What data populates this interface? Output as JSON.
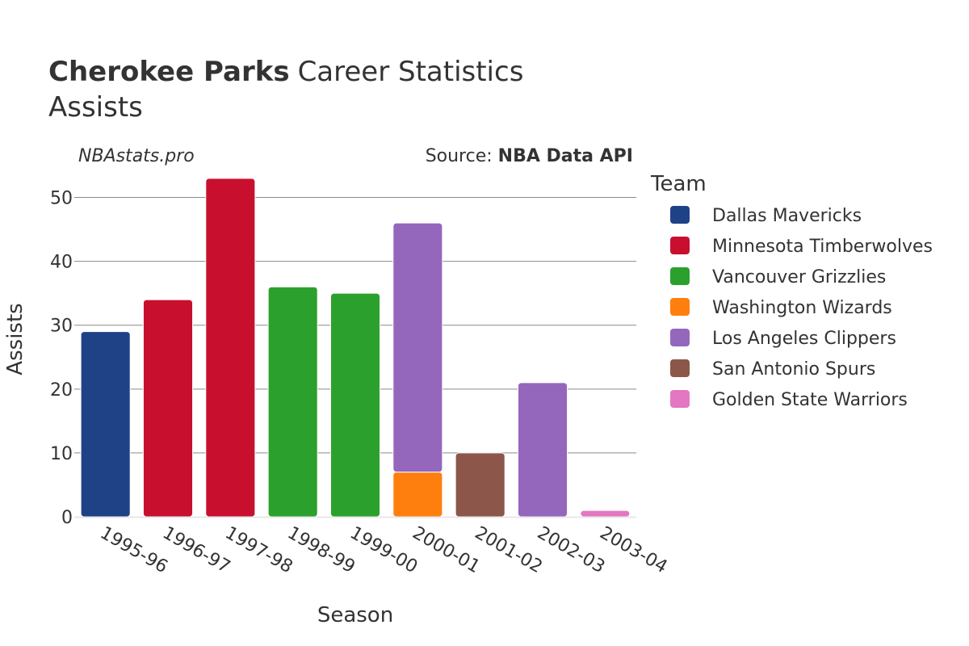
{
  "chart_data": {
    "type": "bar",
    "stacked": true,
    "title_bold": "Cherokee Parks",
    "title_rest": "Career Statistics",
    "subtitle": "Assists",
    "watermark": "NBAstats.pro",
    "source_prefix": "Source: ",
    "source_name": "NBA Data API",
    "xlabel": "Season",
    "ylabel": "Assists",
    "ylim": [
      0,
      55
    ],
    "yticks": [
      0,
      10,
      20,
      30,
      40,
      50
    ],
    "grid": true,
    "legend_title": "Team",
    "legend_position": "right",
    "categories": [
      "1995-96",
      "1996-97",
      "1997-98",
      "1998-99",
      "1999-00",
      "2000-01",
      "2001-02",
      "2002-03",
      "2003-04"
    ],
    "series": [
      {
        "name": "Dallas Mavericks",
        "color": "#1f4287",
        "values": [
          29,
          0,
          0,
          0,
          0,
          0,
          0,
          0,
          0
        ]
      },
      {
        "name": "Minnesota Timberwolves",
        "color": "#c8102e",
        "values": [
          0,
          34,
          53,
          0,
          0,
          0,
          0,
          0,
          0
        ]
      },
      {
        "name": "Vancouver Grizzlies",
        "color": "#2ca02c",
        "values": [
          0,
          0,
          0,
          36,
          35,
          0,
          0,
          0,
          0
        ]
      },
      {
        "name": "Washington Wizards",
        "color": "#ff7f0e",
        "values": [
          0,
          0,
          0,
          0,
          0,
          7,
          0,
          0,
          0
        ]
      },
      {
        "name": "Los Angeles Clippers",
        "color": "#9467bd",
        "values": [
          0,
          0,
          0,
          0,
          0,
          39,
          0,
          21,
          0
        ]
      },
      {
        "name": "San Antonio Spurs",
        "color": "#8c564b",
        "values": [
          0,
          0,
          0,
          0,
          0,
          0,
          10,
          0,
          0
        ]
      },
      {
        "name": "Golden State Warriors",
        "color": "#e377c2",
        "values": [
          0,
          0,
          0,
          0,
          0,
          0,
          0,
          0,
          1
        ]
      }
    ]
  }
}
